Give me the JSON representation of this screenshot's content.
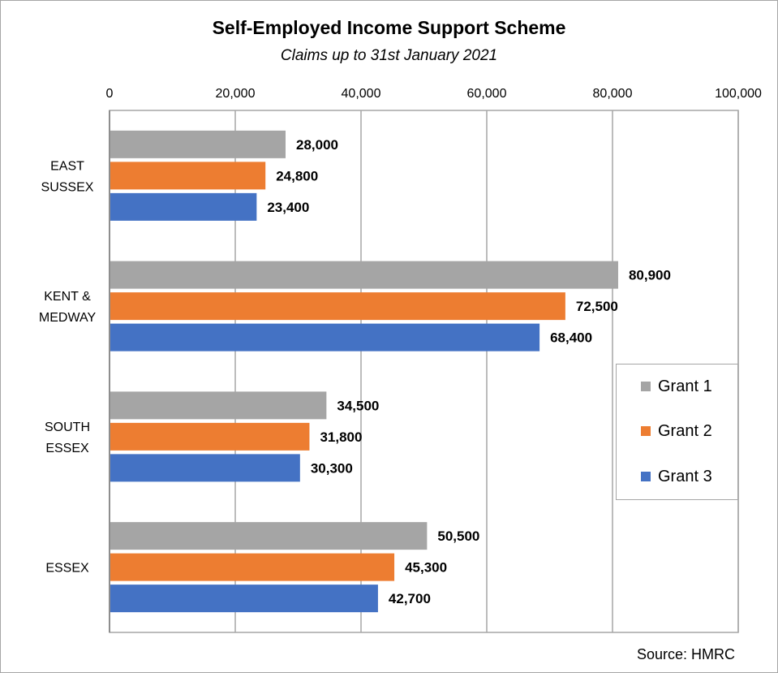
{
  "chart_data": {
    "type": "bar",
    "orientation": "horizontal",
    "title": "Self-Employed Income Support Scheme",
    "subtitle": "Claims up to 31st January 2021",
    "source": "Source: HMRC",
    "categories": [
      [
        "EAST",
        "SUSSEX"
      ],
      [
        "KENT &",
        "MEDWAY"
      ],
      [
        "SOUTH",
        "ESSEX"
      ],
      [
        "ESSEX"
      ]
    ],
    "series": [
      {
        "name": "Grant 1",
        "color": "#a5a5a5",
        "values": [
          28000,
          80900,
          34500,
          50500
        ],
        "labels": [
          "28,000",
          "80,900",
          "34,500",
          "50,500"
        ]
      },
      {
        "name": "Grant 2",
        "color": "#ed7d31",
        "values": [
          24800,
          72500,
          31800,
          45300
        ],
        "labels": [
          "24,800",
          "72,500",
          "31,800",
          "45,300"
        ]
      },
      {
        "name": "Grant 3",
        "color": "#4472c4",
        "values": [
          23400,
          68400,
          30300,
          42700
        ],
        "labels": [
          "23,400",
          "68,400",
          "30,300",
          "42,700"
        ]
      }
    ],
    "xlim": [
      0,
      100000
    ],
    "xticks": [
      0,
      20000,
      40000,
      60000,
      80000,
      100000
    ],
    "xtick_labels": [
      "0",
      "20,000",
      "40,000",
      "60,000",
      "80,000",
      "100,000"
    ],
    "x_axis_position": "top",
    "grid": true,
    "legend_position": "right"
  }
}
